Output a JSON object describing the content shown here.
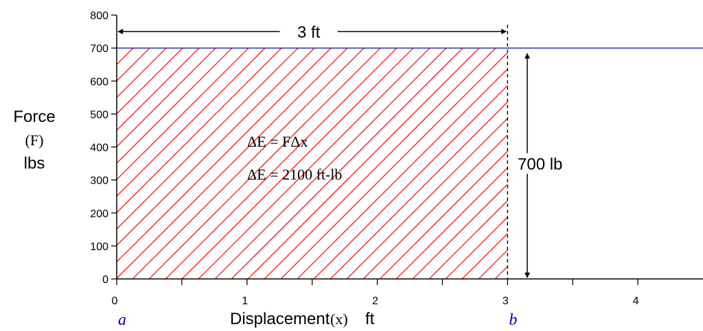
{
  "chart_data": {
    "type": "area",
    "x": [
      0,
      4.5
    ],
    "series": [
      {
        "values": [
          700,
          700
        ]
      }
    ],
    "shaded_region": {
      "x_from": 0,
      "x_to": 3,
      "y_from": 0,
      "y_to": 700
    },
    "xlim": [
      0,
      4.5
    ],
    "ylim": [
      0,
      800
    ],
    "x_ticks": [
      0,
      0.5,
      1,
      1.5,
      2,
      2.5,
      3,
      3.5,
      4
    ],
    "x_tick_labels": [
      "0",
      "1",
      "2",
      "3",
      "4"
    ],
    "x_tick_label_values": [
      0,
      1,
      2,
      3,
      4
    ],
    "y_ticks": [
      0,
      100,
      200,
      300,
      400,
      500,
      600,
      700,
      800
    ],
    "y_tick_labels": [
      "0",
      "100",
      "200",
      "300",
      "400",
      "500",
      "600",
      "700",
      "800"
    ],
    "ylabel": {
      "line1": "Force",
      "line2": "(F)",
      "line3": "lbs"
    },
    "xlabel": {
      "word": "Displacement",
      "symbol": "(x)",
      "unit": "ft"
    },
    "x_point_labels": [
      {
        "x": 0,
        "text": "a"
      },
      {
        "x": 3,
        "text": "b"
      }
    ],
    "annotations": {
      "width_label": "3 ft",
      "height_label": "700 lb",
      "formula1": "ΔE = FΔx",
      "formula2": "ΔE = 2100 ft-lb"
    },
    "grid": false,
    "colors": {
      "force_line": "#0000cc",
      "hatch": "#ff0000",
      "point_labels": "#0000cc",
      "axis": "#000000"
    }
  }
}
